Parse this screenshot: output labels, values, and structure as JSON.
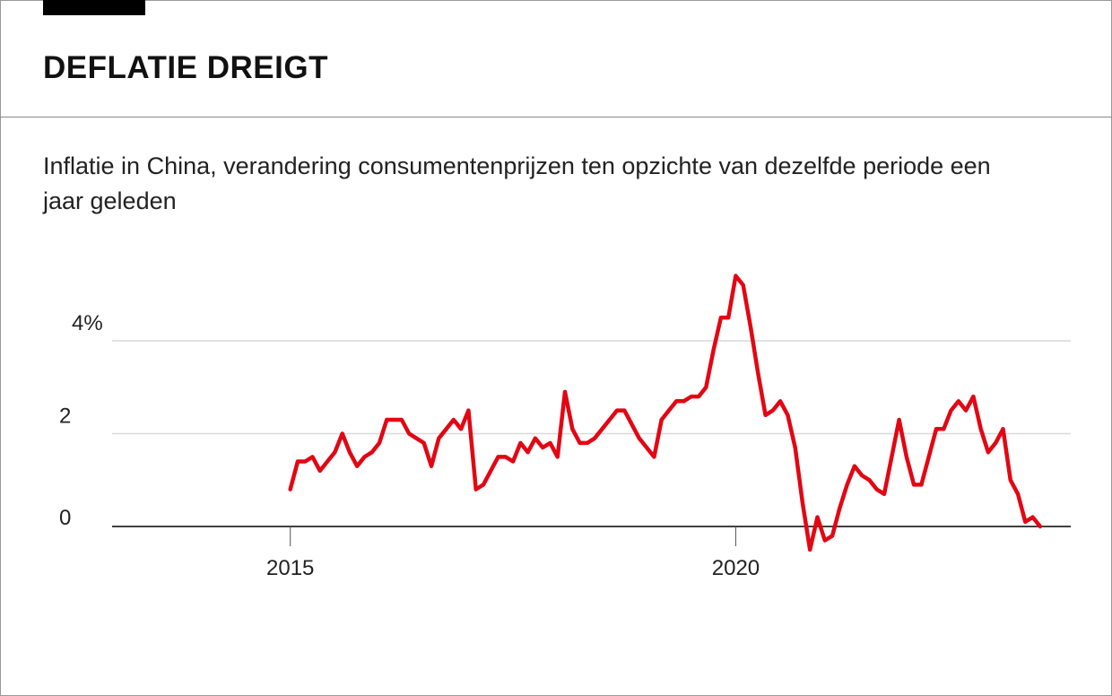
{
  "header": {
    "title": "DEFLATIE DREIGT",
    "subtitle": "Inflatie in China, verandering consumentenprijzen ten opzichte van dezelfde periode een jaar geleden"
  },
  "colors": {
    "line": "#e30613",
    "grid": "#d9d9d9",
    "axis": "#000000"
  },
  "chart_data": {
    "type": "line",
    "title": "DEFLATIE DREIGT",
    "subtitle": "Inflatie in China, verandering consumentenprijzen ten opzichte van dezelfde periode een jaar geleden",
    "xlabel": "",
    "ylabel": "",
    "xlim": [
      2013,
      2023.76
    ],
    "ylim": [
      -0.6,
      5.5
    ],
    "x_ticks": [
      {
        "value": 2015,
        "label": "2015"
      },
      {
        "value": 2020,
        "label": "2020"
      }
    ],
    "y_ticks": [
      {
        "value": 0,
        "label": "0"
      },
      {
        "value": 2,
        "label": "2"
      },
      {
        "value": 4,
        "label": "4%"
      }
    ],
    "grid": "horizontal",
    "x_start": "2015-01",
    "x_frequency": "monthly",
    "values": [
      0.8,
      1.4,
      1.4,
      1.5,
      1.2,
      1.4,
      1.6,
      2.0,
      1.6,
      1.3,
      1.5,
      1.6,
      1.8,
      2.3,
      2.3,
      2.3,
      2.0,
      1.9,
      1.8,
      1.3,
      1.9,
      2.1,
      2.3,
      2.1,
      2.5,
      0.8,
      0.9,
      1.2,
      1.5,
      1.5,
      1.4,
      1.8,
      1.6,
      1.9,
      1.7,
      1.8,
      1.5,
      2.9,
      2.1,
      1.8,
      1.8,
      1.9,
      2.1,
      2.3,
      2.5,
      2.5,
      2.2,
      1.9,
      1.7,
      1.5,
      2.3,
      2.5,
      2.7,
      2.7,
      2.8,
      2.8,
      3.0,
      3.8,
      4.5,
      4.5,
      5.4,
      5.2,
      4.3,
      3.3,
      2.4,
      2.5,
      2.7,
      2.4,
      1.7,
      0.5,
      -0.5,
      0.2,
      -0.3,
      -0.2,
      0.4,
      0.9,
      1.3,
      1.1,
      1.0,
      0.8,
      0.7,
      1.5,
      2.3,
      1.5,
      0.9,
      0.9,
      1.5,
      2.1,
      2.1,
      2.5,
      2.7,
      2.5,
      2.8,
      2.1,
      1.6,
      1.8,
      2.1,
      1.0,
      0.7,
      0.1,
      0.2,
      0.0
    ]
  }
}
